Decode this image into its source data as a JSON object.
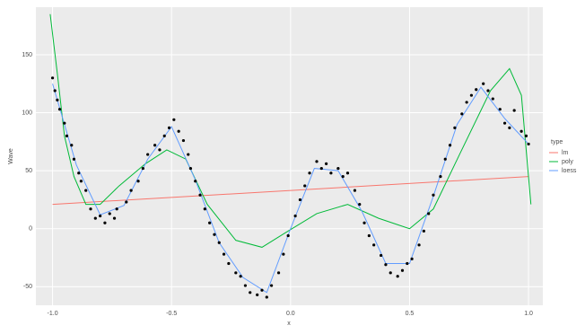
{
  "chart_data": {
    "type": "scatter",
    "x_label": "x",
    "y_label": "Wave",
    "legend_title": "type",
    "xlim": [
      -1.07,
      1.06
    ],
    "ylim": [
      -66,
      191
    ],
    "xticks": [
      {
        "value": -1,
        "label": "-1.0"
      },
      {
        "value": -0.5,
        "label": "-0.5"
      },
      {
        "value": 0,
        "label": "0.0"
      },
      {
        "value": 0.5,
        "label": "0.5"
      },
      {
        "value": 1,
        "label": "1.0"
      }
    ],
    "yticks": [
      150,
      100,
      50,
      0,
      -50
    ],
    "grid": true,
    "legend": "right",
    "points": {
      "color": "#000000",
      "x": [
        -1.0,
        -0.99,
        -0.98,
        -0.97,
        -0.95,
        -0.94,
        -0.92,
        -0.91,
        -0.89,
        -0.88,
        -0.86,
        -0.84,
        -0.82,
        -0.8,
        -0.78,
        -0.76,
        -0.74,
        -0.73,
        -0.69,
        -0.67,
        -0.64,
        -0.62,
        -0.6,
        -0.57,
        -0.55,
        -0.53,
        -0.51,
        -0.49,
        -0.47,
        -0.45,
        -0.43,
        -0.42,
        -0.4,
        -0.38,
        -0.36,
        -0.34,
        -0.32,
        -0.3,
        -0.28,
        -0.26,
        -0.23,
        -0.21,
        -0.19,
        -0.17,
        -0.14,
        -0.12,
        -0.1,
        -0.08,
        -0.05,
        -0.03,
        -0.01,
        0.02,
        0.04,
        0.06,
        0.08,
        0.11,
        0.13,
        0.15,
        0.17,
        0.2,
        0.22,
        0.24,
        0.27,
        0.29,
        0.31,
        0.33,
        0.35,
        0.38,
        0.4,
        0.42,
        0.45,
        0.47,
        0.49,
        0.51,
        0.54,
        0.56,
        0.58,
        0.6,
        0.63,
        0.65,
        0.67,
        0.69,
        0.72,
        0.74,
        0.76,
        0.78,
        0.81,
        0.83,
        0.85,
        0.88,
        0.9,
        0.92,
        0.94,
        0.97,
        0.99,
        1.0
      ],
      "y": [
        130,
        119,
        111,
        103,
        91,
        80,
        72,
        60,
        48,
        41,
        33,
        17,
        9,
        11,
        5,
        13,
        9,
        17,
        23,
        33,
        41,
        52,
        64,
        72,
        68,
        80,
        87,
        94,
        84,
        76,
        64,
        52,
        41,
        29,
        17,
        5,
        -5,
        -12,
        -22,
        -30,
        -38,
        -41,
        -49,
        -55,
        -57,
        -53,
        -59,
        -49,
        -38,
        -22,
        -6,
        11,
        25,
        37,
        48,
        58,
        52,
        56,
        48,
        52,
        45,
        48,
        33,
        21,
        5,
        -6,
        -14,
        -23,
        -31,
        -38,
        -41,
        -36,
        -30,
        -26,
        -14,
        -2,
        13,
        29,
        45,
        60,
        72,
        87,
        99,
        109,
        115,
        120,
        125,
        119,
        112,
        103,
        91,
        87,
        102,
        84,
        80,
        73
      ]
    },
    "series": [
      {
        "name": "lm",
        "color": "#f8766d",
        "x": [
          -1,
          1
        ],
        "values": [
          21,
          45
        ]
      },
      {
        "name": "poly",
        "color": "#00ba38",
        "x": [
          -1.01,
          -0.98,
          -0.95,
          -0.91,
          -0.86,
          -0.8,
          -0.72,
          -0.61,
          -0.52,
          -0.44,
          -0.35,
          -0.23,
          -0.12,
          -0.01,
          0.11,
          0.24,
          0.37,
          0.5,
          0.6,
          0.71,
          0.84,
          0.92,
          0.97,
          1.01
        ],
        "values": [
          185,
          134,
          80,
          45,
          21,
          21,
          37,
          56,
          68,
          60,
          21,
          -10,
          -16,
          -2,
          13,
          21,
          9,
          0,
          17,
          64,
          119,
          138,
          115,
          21
        ]
      },
      {
        "name": "loess",
        "color": "#619cff",
        "x": [
          -1,
          -0.9,
          -0.8,
          -0.7,
          -0.6,
          -0.5,
          -0.4,
          -0.3,
          -0.2,
          -0.1,
          0,
          0.1,
          0.2,
          0.3,
          0.4,
          0.5,
          0.6,
          0.7,
          0.8,
          0.9,
          1
        ],
        "values": [
          125,
          55,
          12,
          20,
          60,
          88,
          42,
          -12,
          -42,
          -55,
          0,
          52,
          50,
          15,
          -30,
          -30,
          28,
          90,
          122,
          95,
          73
        ]
      }
    ]
  }
}
